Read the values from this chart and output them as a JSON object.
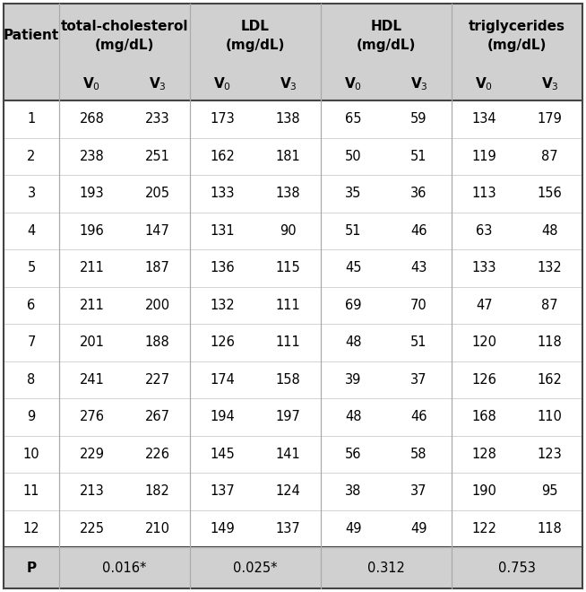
{
  "header_bg": "#d0d0d0",
  "white_bg": "#ffffff",
  "group_labels": [
    "total-cholesterol\n(mg/dL)",
    "LDL\n(mg/dL)",
    "HDL\n(mg/dL)",
    "triglycerides\n(mg/dL)"
  ],
  "subheaders": [
    "V0",
    "V3",
    "V0",
    "V3",
    "V0",
    "V3",
    "V0",
    "V3"
  ],
  "patients": [
    1,
    2,
    3,
    4,
    5,
    6,
    7,
    8,
    9,
    10,
    11,
    12
  ],
  "data": [
    [
      268,
      233,
      173,
      138,
      65,
      59,
      134,
      179
    ],
    [
      238,
      251,
      162,
      181,
      50,
      51,
      119,
      87
    ],
    [
      193,
      205,
      133,
      138,
      35,
      36,
      113,
      156
    ],
    [
      196,
      147,
      131,
      90,
      51,
      46,
      63,
      48
    ],
    [
      211,
      187,
      136,
      115,
      45,
      43,
      133,
      132
    ],
    [
      211,
      200,
      132,
      111,
      69,
      70,
      47,
      87
    ],
    [
      201,
      188,
      126,
      111,
      48,
      51,
      120,
      118
    ],
    [
      241,
      227,
      174,
      158,
      39,
      37,
      126,
      162
    ],
    [
      276,
      267,
      194,
      197,
      48,
      46,
      168,
      110
    ],
    [
      229,
      226,
      145,
      141,
      56,
      58,
      128,
      123
    ],
    [
      213,
      182,
      137,
      124,
      38,
      37,
      190,
      95
    ],
    [
      225,
      210,
      149,
      137,
      49,
      49,
      122,
      118
    ]
  ],
  "p_values": [
    "0.016*",
    "0.025*",
    "0.312",
    "0.753"
  ],
  "font_size_header": 11,
  "font_size_data": 10.5,
  "divider_color": "#aaaaaa",
  "border_color": "#444444",
  "thin_line_color": "#cccccc"
}
